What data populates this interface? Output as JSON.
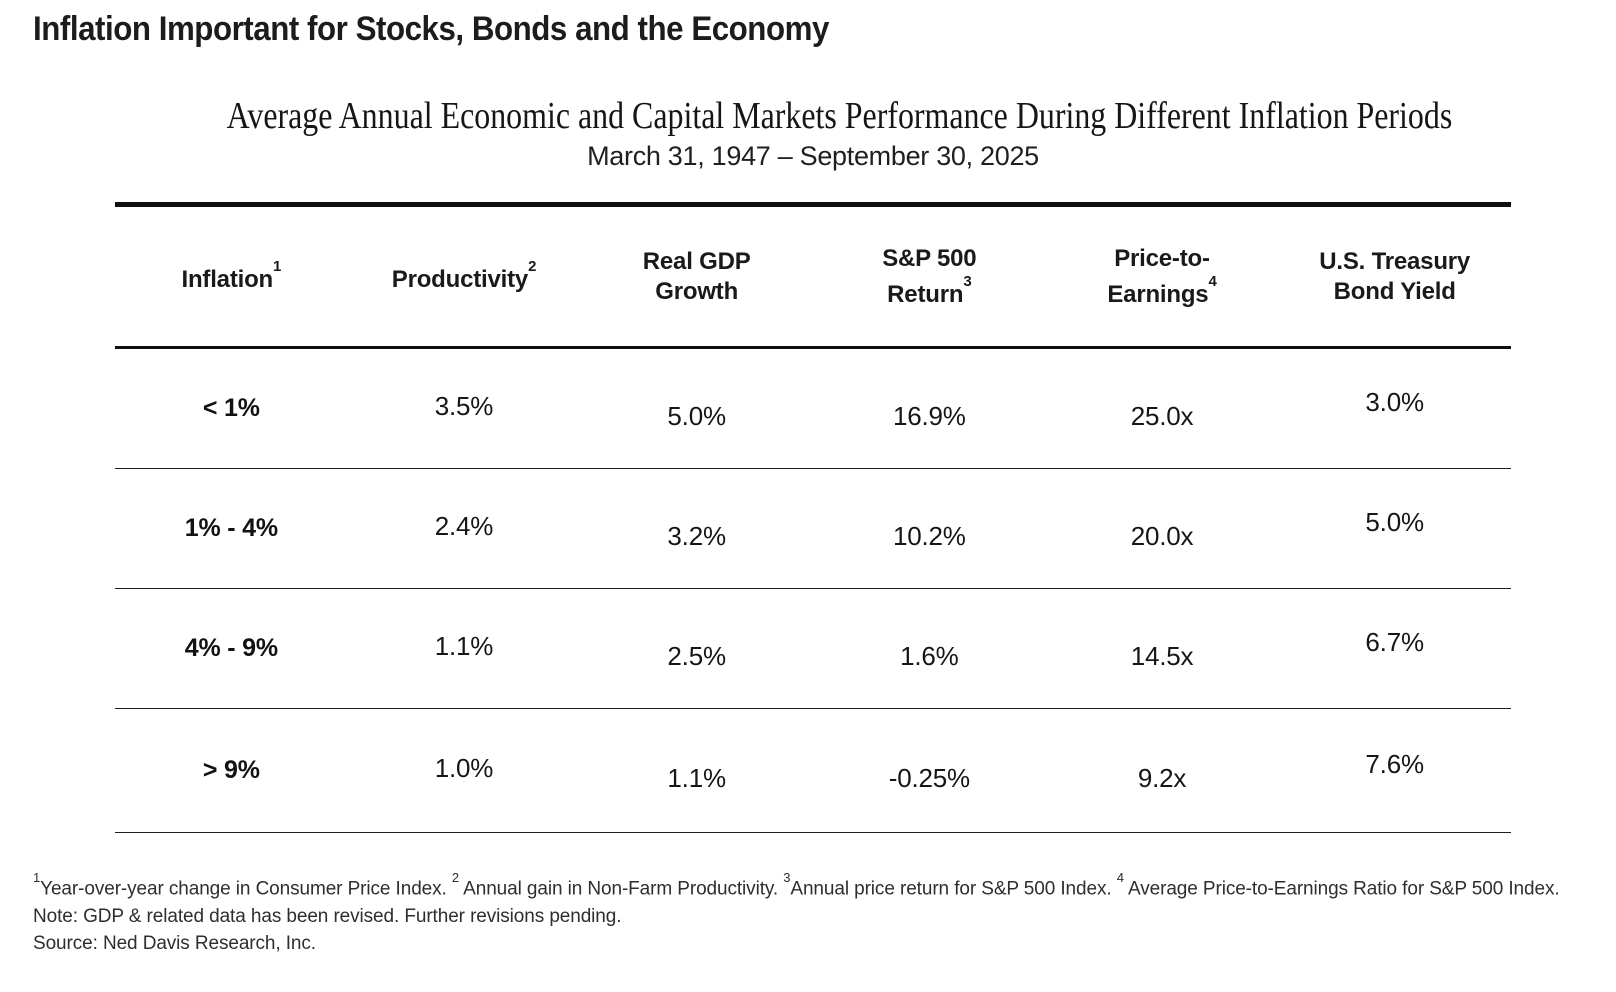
{
  "page": {
    "title": "Inflation Important for Stocks, Bonds and the Economy"
  },
  "table": {
    "title": "Average Annual Economic and Capital Markets Performance During Different Inflation Periods",
    "date_range": "March 31, 1947 – September 30, 2025",
    "columns": [
      {
        "line1": "Inflation",
        "sup": "1"
      },
      {
        "line1": "Productivity",
        "sup": "2"
      },
      {
        "line1": "Real GDP",
        "line2": "Growth"
      },
      {
        "line1": "S&P 500",
        "line2": "Return",
        "sup": "3"
      },
      {
        "line1": "Price-to-",
        "line2": "Earnings",
        "sup": "4"
      },
      {
        "line1": "U.S. Treasury",
        "line2": "Bond Yield"
      }
    ],
    "rows": [
      {
        "range": "< 1%",
        "values": [
          "3.5%",
          "5.0%",
          "16.9%",
          "25.0x",
          "3.0%"
        ]
      },
      {
        "range": "1% - 4%",
        "values": [
          "2.4%",
          "3.2%",
          "10.2%",
          "20.0x",
          "5.0%"
        ]
      },
      {
        "range": "4% - 9%",
        "values": [
          "1.1%",
          "2.5%",
          "1.6%",
          "14.5x",
          "6.7%"
        ]
      },
      {
        "range": "> 9%",
        "values": [
          "1.0%",
          "1.1%",
          "-0.25%",
          "9.2x",
          "7.6%"
        ]
      }
    ]
  },
  "chart_data": {
    "type": "table",
    "title": "Average Annual Economic and Capital Markets Performance During Different Inflation Periods",
    "subtitle": "March 31, 1947 – September 30, 2025",
    "categories": [
      "Inflation",
      "Productivity",
      "Real GDP Growth",
      "S&P 500 Return",
      "Price-to-Earnings",
      "U.S. Treasury Bond Yield"
    ],
    "series": [
      {
        "name": "< 1%",
        "values": [
          "3.5%",
          "5.0%",
          "16.9%",
          "25.0x",
          "3.0%"
        ]
      },
      {
        "name": "1% - 4%",
        "values": [
          "2.4%",
          "3.2%",
          "10.2%",
          "20.0x",
          "5.0%"
        ]
      },
      {
        "name": "4% - 9%",
        "values": [
          "1.1%",
          "2.5%",
          "1.6%",
          "14.5x",
          "6.7%"
        ]
      },
      {
        "name": "> 9%",
        "values": [
          "1.0%",
          "1.1%",
          "-0.25%",
          "9.2x",
          "7.6%"
        ]
      }
    ]
  },
  "footnotes": {
    "definitions": [
      {
        "sup": "1",
        "text": "Year-over-year change in Consumer Price Index. "
      },
      {
        "sup": "2",
        "text": " Annual gain in Non-Farm Productivity. "
      },
      {
        "sup": "3",
        "text": "Annual price return for S&P 500 Index. "
      },
      {
        "sup": "4",
        "text": " Average Price-to-Earnings Ratio for S&P 500 Index."
      }
    ],
    "note": "Note: GDP & related data has been revised. Further revisions pending.",
    "source": "Source: Ned Davis Research, Inc."
  },
  "colors": {
    "text": "#1a1a1a",
    "rule_heavy": "#101010",
    "rule_light": "#1d1d1d",
    "background": "#ffffff"
  }
}
